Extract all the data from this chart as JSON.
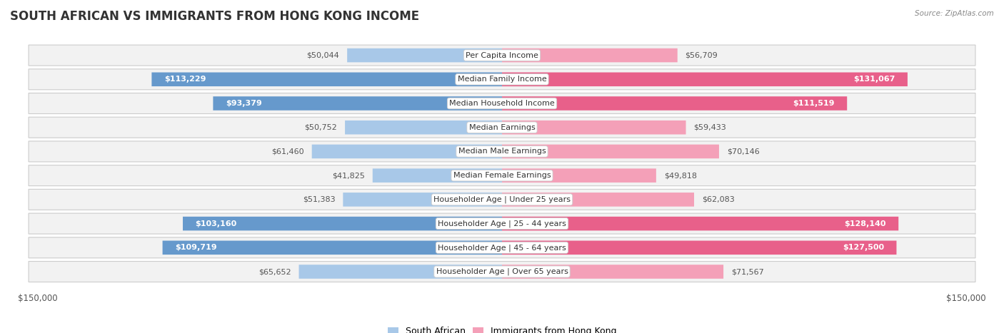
{
  "title": "South African vs Immigrants from Hong Kong Income",
  "source": "Source: ZipAtlas.com",
  "categories": [
    "Per Capita Income",
    "Median Family Income",
    "Median Household Income",
    "Median Earnings",
    "Median Male Earnings",
    "Median Female Earnings",
    "Householder Age | Under 25 years",
    "Householder Age | 25 - 44 years",
    "Householder Age | 45 - 64 years",
    "Householder Age | Over 65 years"
  ],
  "south_african": [
    50044,
    113229,
    93379,
    50752,
    61460,
    41825,
    51383,
    103160,
    109719,
    65652
  ],
  "hong_kong": [
    56709,
    131067,
    111519,
    59433,
    70146,
    49818,
    62083,
    128140,
    127500,
    71567
  ],
  "sa_labels": [
    "$50,044",
    "$113,229",
    "$93,379",
    "$50,752",
    "$61,460",
    "$41,825",
    "$51,383",
    "$103,160",
    "$109,719",
    "$65,652"
  ],
  "hk_labels": [
    "$56,709",
    "$131,067",
    "$111,519",
    "$59,433",
    "$70,146",
    "$49,818",
    "$62,083",
    "$128,140",
    "$127,500",
    "$71,567"
  ],
  "sa_inside": [
    false,
    true,
    true,
    false,
    false,
    false,
    false,
    true,
    true,
    false
  ],
  "hk_inside": [
    false,
    true,
    true,
    false,
    false,
    false,
    false,
    true,
    true,
    false
  ],
  "max_value": 150000,
  "blue_light": "#a8c8e8",
  "blue_dark": "#6699cc",
  "pink_light": "#f4a0b8",
  "pink_dark": "#e8608a",
  "row_bg_light": "#f0f0f0",
  "row_border": "#d0d0d0",
  "label_fontsize": 8.0,
  "category_fontsize": 8.0,
  "title_fontsize": 12,
  "legend_fontsize": 9,
  "axis_label_fontsize": 8.5
}
